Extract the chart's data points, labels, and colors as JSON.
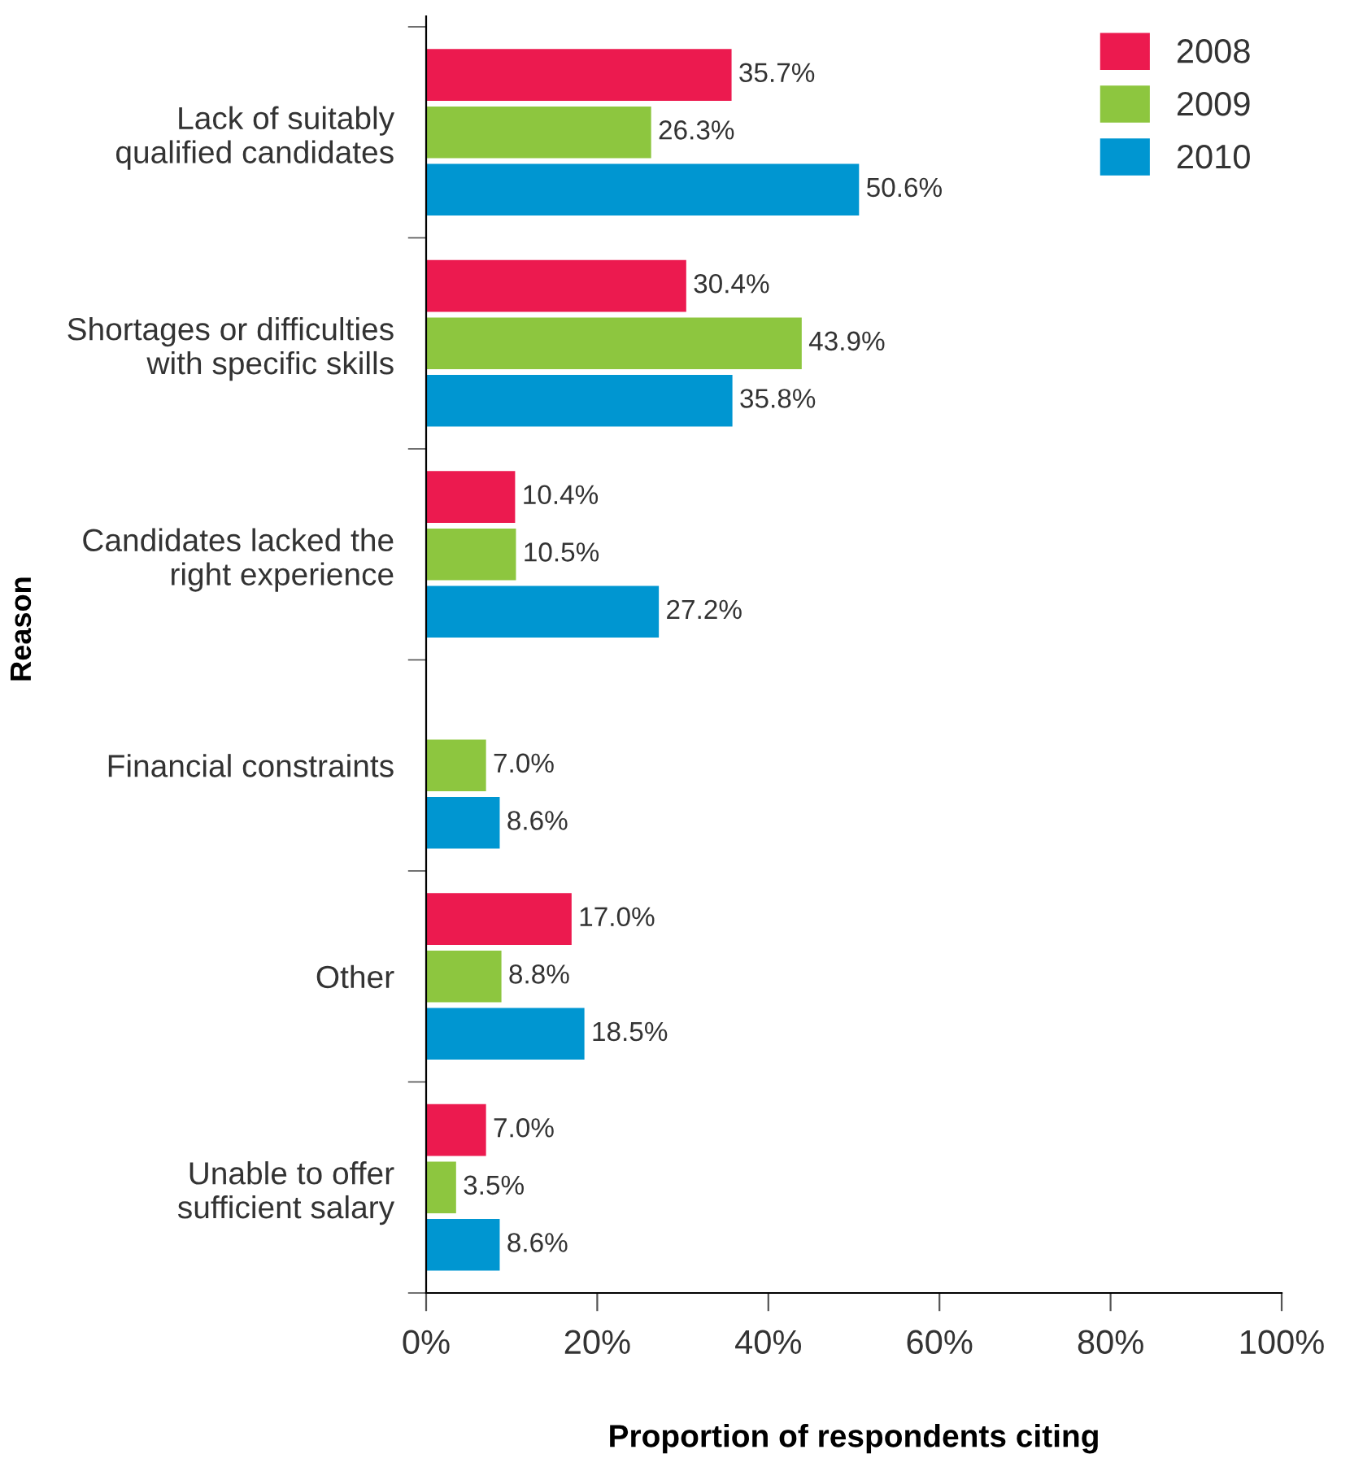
{
  "chart_data": {
    "type": "bar",
    "orientation": "horizontal",
    "ylabel": "Reason",
    "xlabel": "Proportion of respondents citing",
    "categories": [
      "Lack of suitably\nqualified candidates",
      "Shortages or difficulties\nwith specific skills",
      "Candidates lacked the\nright experience",
      "Financial constraints",
      "Other",
      "Unable to offer\nsufficient salary"
    ],
    "series": [
      {
        "name": "2008",
        "color": "#ec1a4f",
        "values": [
          35.7,
          30.4,
          10.4,
          null,
          17.0,
          7.0
        ],
        "value_labels": [
          "35.7%",
          "30.4%",
          "10.4%",
          null,
          "17.0%",
          "7.0%"
        ]
      },
      {
        "name": "2009",
        "color": "#8dc63f",
        "values": [
          26.3,
          43.9,
          10.5,
          7.0,
          8.8,
          3.5
        ],
        "value_labels": [
          "26.3%",
          "43.9%",
          "10.5%",
          "7.0%",
          "8.8%",
          "3.5%"
        ]
      },
      {
        "name": "2010",
        "color": "#0096d1",
        "values": [
          50.6,
          35.8,
          27.2,
          8.6,
          18.5,
          8.6
        ],
        "value_labels": [
          "50.6%",
          "35.8%",
          "27.2%",
          "8.6%",
          "18.5%",
          "8.6%"
        ]
      }
    ],
    "xlim": [
      0,
      100
    ],
    "xticks": [
      {
        "value": 0,
        "label": "0%"
      },
      {
        "value": 20,
        "label": "20%"
      },
      {
        "value": 40,
        "label": "40%"
      },
      {
        "value": 60,
        "label": "60%"
      },
      {
        "value": 80,
        "label": "80%"
      },
      {
        "value": 100,
        "label": "100%"
      }
    ],
    "grid": false,
    "legend": "top right"
  }
}
